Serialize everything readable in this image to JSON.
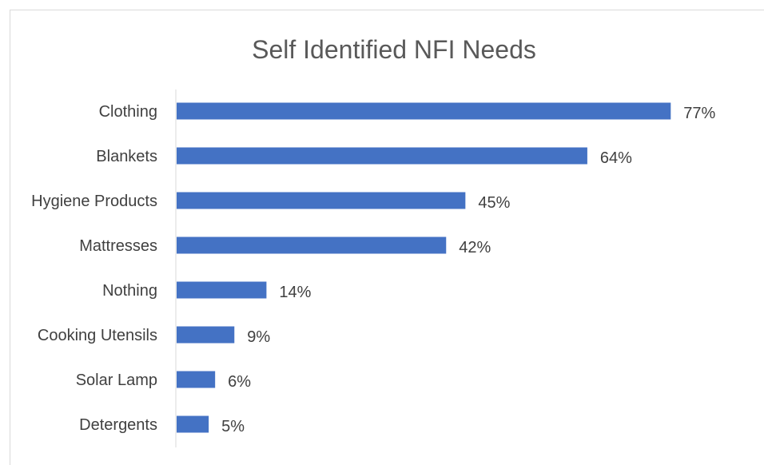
{
  "chart_data": {
    "type": "bar",
    "orientation": "horizontal",
    "title": "Self Identified NFI Needs",
    "categories": [
      "Clothing",
      "Blankets",
      "Hygiene Products",
      "Mattresses",
      "Nothing",
      "Cooking Utensils",
      "Solar Lamp",
      "Detergents"
    ],
    "values": [
      77,
      64,
      45,
      42,
      14,
      9,
      6,
      5
    ],
    "data_labels": [
      "77%",
      "64%",
      "45%",
      "42%",
      "14%",
      "9%",
      "6%",
      "5%"
    ],
    "value_unit": "%",
    "xlim": [
      0,
      100
    ],
    "grid": false,
    "legend": "none",
    "bar_color": "#4472c4",
    "axis_line_color": "#d9d9d9",
    "text_color": "#404040"
  }
}
